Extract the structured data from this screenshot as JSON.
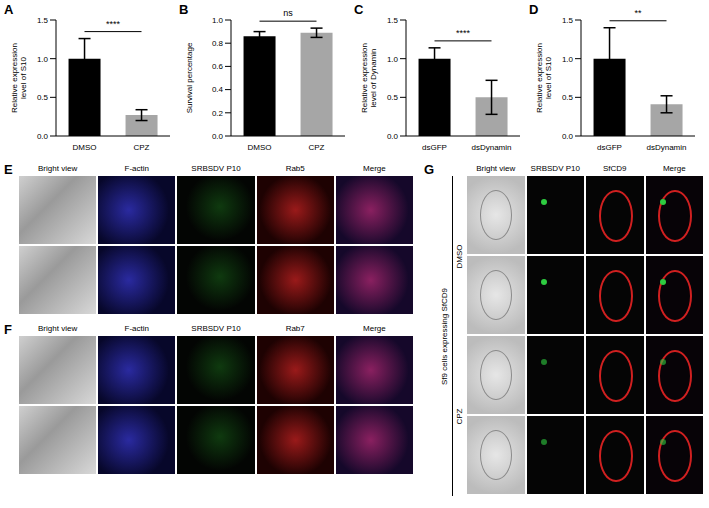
{
  "chart_data": [
    {
      "panel": "A",
      "type": "bar",
      "ylabel": "Relative expression level of S10",
      "categories": [
        "DMSO",
        "CPZ"
      ],
      "values": [
        1.0,
        0.27
      ],
      "errors": [
        0.26,
        0.07
      ],
      "colors": [
        "#000000",
        "#a6a6a6"
      ],
      "ylim": [
        0,
        1.5
      ],
      "yticks": [
        {
          "value": 0,
          "label": "0.0"
        },
        {
          "value": 0.5,
          "label": "0.5"
        },
        {
          "value": 1,
          "label": "1.0"
        },
        {
          "value": 1.5,
          "label": "1.5"
        }
      ],
      "significance": "****"
    },
    {
      "panel": "B",
      "type": "bar",
      "ylabel": "Survival percentage",
      "categories": [
        "DMSO",
        "CPZ"
      ],
      "values": [
        0.86,
        0.89
      ],
      "errors": [
        0.04,
        0.04
      ],
      "colors": [
        "#000000",
        "#a6a6a6"
      ],
      "ylim": [
        0,
        1.0
      ],
      "yticks": [
        {
          "value": 0,
          "label": "0.0"
        },
        0.2,
        0.4,
        0.6,
        0.8,
        {
          "value": 1,
          "label": "1.0"
        }
      ],
      "significance": "ns"
    },
    {
      "panel": "C",
      "type": "bar",
      "ylabel": "Relative expression level of Dynamin",
      "categories": [
        "dsGFP",
        "dsDynamin"
      ],
      "values": [
        1.0,
        0.5
      ],
      "errors": [
        0.14,
        0.22
      ],
      "colors": [
        "#000000",
        "#a6a6a6"
      ],
      "ylim": [
        0,
        1.5
      ],
      "yticks": [
        {
          "value": 0,
          "label": "0.0"
        },
        {
          "value": 0.5,
          "label": "0.5"
        },
        {
          "value": 1,
          "label": "1.0"
        },
        {
          "value": 1.5,
          "label": "1.5"
        }
      ],
      "significance": "****"
    },
    {
      "panel": "D",
      "type": "bar",
      "ylabel": "Relative expression level of S10",
      "categories": [
        "dsGFP",
        "dsDynamin"
      ],
      "values": [
        1.0,
        0.41
      ],
      "errors": [
        0.4,
        0.11
      ],
      "colors": [
        "#000000",
        "#a6a6a6"
      ],
      "ylim": [
        0,
        1.5
      ],
      "yticks": [
        {
          "value": 0,
          "label": "0.0"
        },
        {
          "value": 0.5,
          "label": "0.5"
        },
        {
          "value": 1,
          "label": "1.0"
        },
        {
          "value": 1.5,
          "label": "1.5"
        }
      ],
      "significance": "**"
    }
  ],
  "images": [
    {
      "panel": "E",
      "columns": [
        "Bright view",
        "F-actin",
        "SRBSDV P10",
        "Rab5",
        "Merge"
      ],
      "rows": 2
    },
    {
      "panel": "F",
      "columns": [
        "Bright view",
        "F-actin",
        "SRBSDV P10",
        "Rab7",
        "Merge"
      ],
      "rows": 2
    },
    {
      "panel": "G",
      "columns": [
        "Bright view",
        "SRBSDV P10",
        "SfCD9",
        "Merge"
      ],
      "groups": [
        "DMSO",
        "CPZ"
      ],
      "rows_per_group": 2,
      "side_label": "Sf9 cells expressing SfCD9"
    }
  ]
}
